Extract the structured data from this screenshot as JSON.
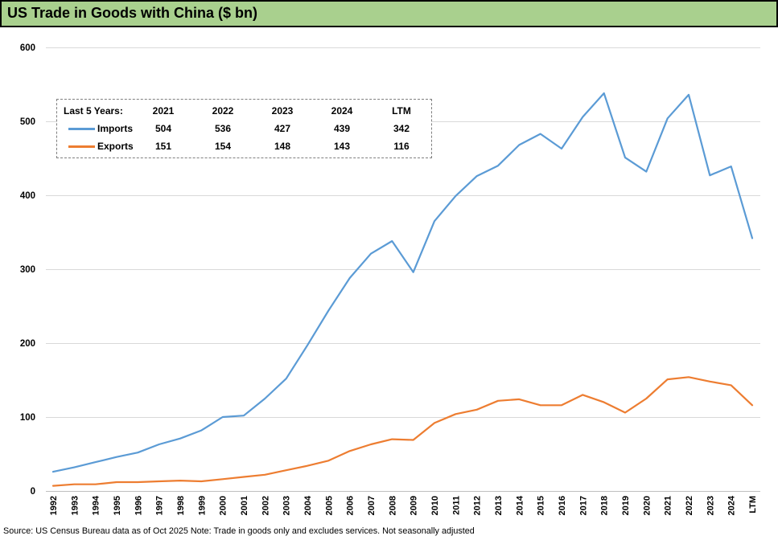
{
  "title": "US Trade in Goods with China ($ bn)",
  "source_note": "Source: US Census Bureau data as of Oct 2025 Note: Trade in goods only and excludes services. Not seasonally adjusted",
  "legend_table": {
    "header_label": "Last 5 Years:",
    "columns": [
      "2021",
      "2022",
      "2023",
      "2024",
      "LTM"
    ],
    "rows": [
      {
        "label": "Imports",
        "values": [
          "504",
          "536",
          "427",
          "439",
          "342"
        ]
      },
      {
        "label": "Exports",
        "values": [
          "151",
          "154",
          "148",
          "143",
          "116"
        ]
      }
    ]
  },
  "colors": {
    "imports_line": "#5B9BD5",
    "exports_line": "#ED7D31",
    "title_background": "#A9D08E",
    "gridline": "#D9D9D9",
    "axis_line": "#BFBFBF",
    "legend_border": "#7F7F7F"
  },
  "chart_data": {
    "type": "line",
    "title": "US Trade in Goods with China ($ bn)",
    "xlabel": "",
    "ylabel": "",
    "ylim": [
      0,
      600
    ],
    "yticks": [
      0,
      100,
      200,
      300,
      400,
      500,
      600
    ],
    "grid": true,
    "legend_position": "top-left-table",
    "x": [
      "1992",
      "1993",
      "1994",
      "1995",
      "1996",
      "1997",
      "1998",
      "1999",
      "2000",
      "2001",
      "2002",
      "2003",
      "2004",
      "2005",
      "2006",
      "2007",
      "2008",
      "2009",
      "2010",
      "2011",
      "2012",
      "2013",
      "2014",
      "2015",
      "2016",
      "2017",
      "2018",
      "2019",
      "2020",
      "2021",
      "2022",
      "2023",
      "2024",
      "LTM"
    ],
    "series": [
      {
        "name": "Imports",
        "color": "#5B9BD5",
        "values": [
          26,
          32,
          39,
          46,
          52,
          63,
          71,
          82,
          100,
          102,
          125,
          152,
          197,
          244,
          288,
          321,
          338,
          296,
          365,
          399,
          426,
          440,
          468,
          483,
          463,
          506,
          538,
          451,
          432,
          504,
          536,
          427,
          439,
          342
        ]
      },
      {
        "name": "Exports",
        "color": "#ED7D31",
        "values": [
          7,
          9,
          9,
          12,
          12,
          13,
          14,
          13,
          16,
          19,
          22,
          28,
          34,
          41,
          54,
          63,
          70,
          69,
          92,
          104,
          110,
          122,
          124,
          116,
          116,
          130,
          120,
          106,
          125,
          151,
          154,
          148,
          143,
          116
        ]
      }
    ]
  }
}
